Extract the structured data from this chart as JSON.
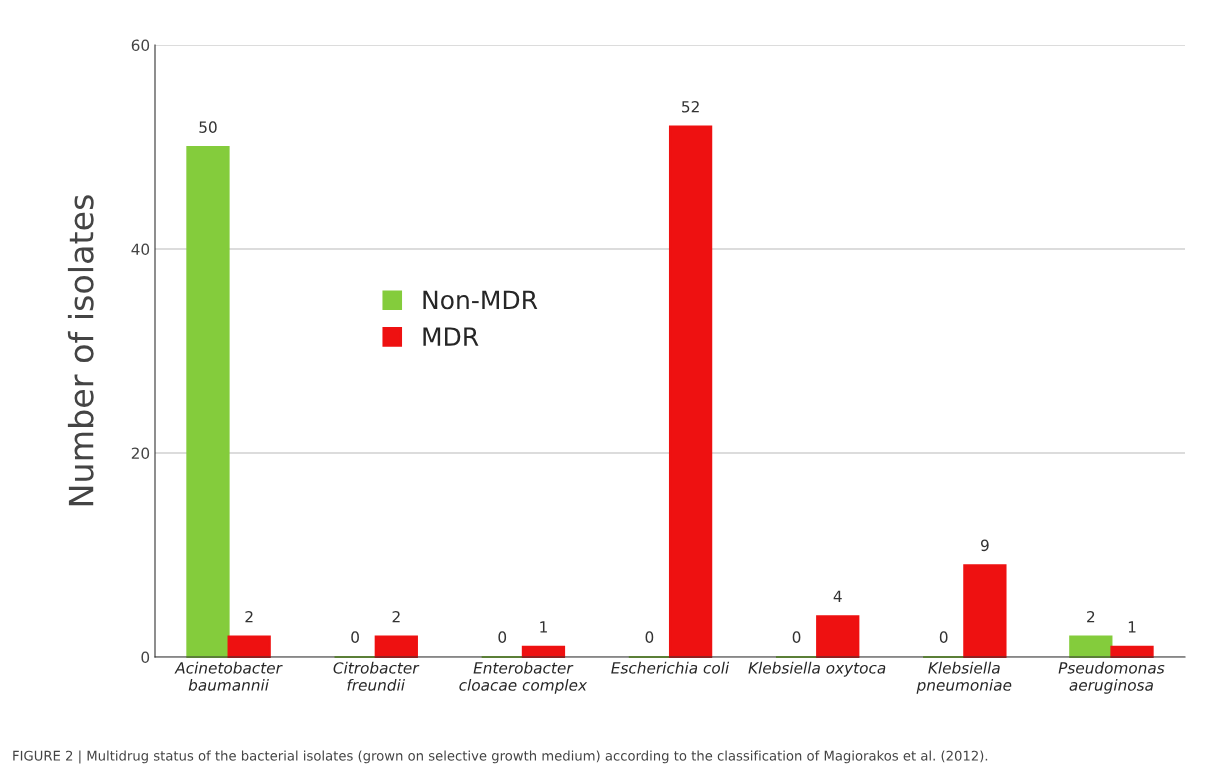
{
  "chart_data": {
    "type": "bar",
    "ylabel": "Number of isolates",
    "categories": [
      "Acinetobacter\nbaumannii",
      "Citrobacter\nfreundii",
      "Enterobacter\ncloacae complex",
      "Escherichia coli",
      "Klebsiella oxytoca",
      "Klebsiella\npneumoniae",
      "Pseudomonas\naeruginosa"
    ],
    "series": [
      {
        "name": "Non-MDR",
        "color": "#84cc3c",
        "values": [
          50,
          0,
          0,
          0,
          0,
          0,
          2
        ]
      },
      {
        "name": "MDR",
        "color": "#ee1111",
        "values": [
          2,
          2,
          1,
          52,
          4,
          9,
          1
        ]
      }
    ],
    "ylim": [
      0,
      60
    ],
    "yticks": [
      0,
      20,
      40,
      60
    ],
    "grid": "y",
    "legend": "center left",
    "data_labels": true,
    "annotations": [
      "FIGURE 2 | Multidrug status of the bacterial isolates (grown on selective growth medium) according to the classification of Magiorakos et al. (2012)."
    ]
  }
}
